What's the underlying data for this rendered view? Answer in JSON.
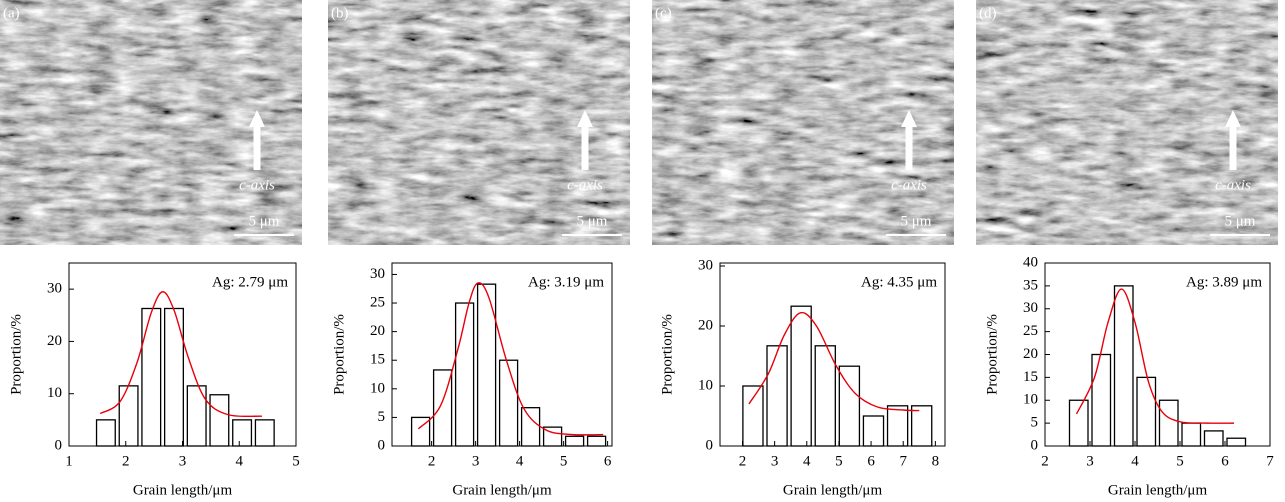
{
  "chart_data": [
    {
      "type": "histogram",
      "panel_label": "(a)",
      "axis_label": "c-axis",
      "scale_label": "5 μm",
      "annotation": "Ag: 2.79 μm",
      "xlabel": "Grain length/μm",
      "ylabel": "Proportion/%",
      "bins": [
        1.45,
        1.85,
        2.25,
        2.65,
        3.05,
        3.45,
        3.85,
        4.25,
        4.65
      ],
      "values": [
        5,
        11.5,
        26.3,
        26.3,
        11.5,
        9.8,
        5,
        5
      ],
      "color": "#000000",
      "fit": {
        "color": "#e8000b",
        "x": [
          1.55,
          1.9,
          2.2,
          2.45,
          2.65,
          2.85,
          3.1,
          3.4,
          3.8,
          4.4
        ],
        "values": [
          6.2,
          8.5,
          16,
          25.5,
          29.5,
          26,
          17,
          9,
          6,
          5.7
        ]
      },
      "xlim": [
        1,
        5
      ],
      "xticks": [
        1,
        2,
        3,
        4,
        5
      ],
      "ylim": [
        0,
        35
      ],
      "yticks": [
        0,
        10,
        20,
        30
      ]
    },
    {
      "type": "histogram",
      "panel_label": "(b)",
      "axis_label": "c-axis",
      "scale_label": "5 μm",
      "annotation": "Ag: 3.19 μm",
      "xlabel": "Grain length/μm",
      "ylabel": "Proportion/%",
      "bins": [
        1.5,
        2.0,
        2.5,
        3.0,
        3.5,
        4.0,
        4.5,
        5.0,
        5.5,
        6.0
      ],
      "values": [
        5,
        13.3,
        25,
        28.3,
        15,
        6.7,
        3.3,
        1.7,
        1.7
      ],
      "color": "#000000",
      "fit": {
        "color": "#e8000b",
        "x": [
          1.7,
          2.2,
          2.6,
          2.85,
          3.05,
          3.3,
          3.7,
          4.1,
          4.6,
          5.2,
          5.9
        ],
        "values": [
          3,
          7,
          17,
          25,
          28.5,
          26,
          15,
          6.5,
          2.8,
          2,
          2
        ]
      },
      "xlim": [
        1.1,
        6.1
      ],
      "xticks": [
        2,
        3,
        4,
        5,
        6
      ],
      "ylim": [
        0,
        32
      ],
      "yticks": [
        0,
        5,
        10,
        15,
        20,
        25,
        30
      ]
    },
    {
      "type": "histogram",
      "panel_label": "(c)",
      "axis_label": "c-axis",
      "scale_label": "5 μm",
      "annotation": "Ag: 4.35 μm",
      "xlabel": "Grain length/μm",
      "ylabel": "Proportion/%",
      "bins": [
        1.95,
        2.7,
        3.45,
        4.2,
        4.95,
        5.7,
        6.45,
        7.2,
        7.95
      ],
      "values": [
        10,
        16.7,
        23.3,
        16.7,
        13.3,
        5,
        6.7,
        6.7
      ],
      "color": "#000000",
      "fit": {
        "color": "#e8000b",
        "x": [
          2.2,
          2.8,
          3.3,
          3.8,
          4.3,
          4.9,
          5.5,
          6.2,
          7.0,
          7.5
        ],
        "values": [
          7,
          12,
          18.5,
          22.2,
          20,
          13.5,
          8.8,
          6.5,
          6,
          5.9
        ]
      },
      "xlim": [
        1.3,
        8.3
      ],
      "xticks": [
        2,
        3,
        4,
        5,
        6,
        7,
        8
      ],
      "ylim": [
        0,
        30.5
      ],
      "yticks": [
        0,
        10,
        20,
        30
      ]
    },
    {
      "type": "histogram",
      "panel_label": "(d)",
      "axis_label": "c-axis",
      "scale_label": "5 μm",
      "annotation": "Ag: 3.89 μm",
      "xlabel": "Grain length/μm",
      "ylabel": "Proportion/%",
      "bins": [
        2.5,
        3.0,
        3.5,
        4.0,
        4.5,
        5.0,
        5.5,
        6.0,
        6.5
      ],
      "values": [
        10,
        20,
        35,
        15,
        10,
        5,
        3.3,
        1.7
      ],
      "color": "#000000",
      "fit": {
        "color": "#e8000b",
        "x": [
          2.7,
          3.1,
          3.4,
          3.7,
          4.0,
          4.3,
          4.6,
          5.0,
          5.6,
          6.2
        ],
        "values": [
          7,
          15,
          27,
          34.3,
          27,
          14,
          7.5,
          5.3,
          5,
          5
        ]
      },
      "xlim": [
        2,
        7
      ],
      "xticks": [
        2,
        3,
        4,
        5,
        6,
        7
      ],
      "ylim": [
        0,
        40
      ],
      "yticks": [
        0,
        5,
        10,
        15,
        20,
        25,
        30,
        35,
        40
      ]
    }
  ]
}
